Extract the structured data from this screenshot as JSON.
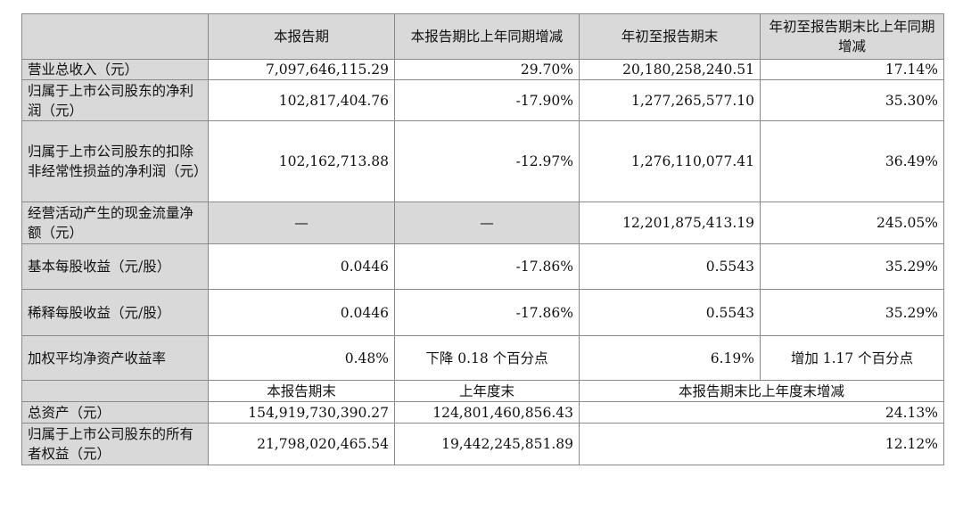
{
  "header": [
    "",
    "本报告期",
    "本报告期比上年同期增减",
    "年初至报告期末",
    "年初至报告期末比上年同期增减"
  ],
  "rows": [
    {
      "label": "营业总收入（元）",
      "v": [
        "7,097,646,115.29",
        "29.70%",
        "20,180,258,240.51",
        "17.14%"
      ]
    },
    {
      "label": "归属于上市公司股东的净利润（元）",
      "v": [
        "102,817,404.76",
        "-17.90%",
        "1,277,265,577.10",
        "35.30%"
      ]
    },
    {
      "label": "归属于上市公司股东的扣除非经常性损益的净利润（元）",
      "v": [
        "102,162,713.88",
        "-12.97%",
        "1,276,110,077.41",
        "36.49%"
      ]
    },
    {
      "label": "经营活动产生的现金流量净额（元）",
      "v": [
        "—",
        "—",
        "12,201,875,413.19",
        "245.05%"
      ]
    },
    {
      "label": "基本每股收益（元/股）",
      "v": [
        "0.0446",
        "-17.86%",
        "0.5543",
        "35.29%"
      ]
    },
    {
      "label": "稀释每股收益（元/股）",
      "v": [
        "0.0446",
        "-17.86%",
        "0.5543",
        "35.29%"
      ]
    },
    {
      "label": "加权平均净资产收益率",
      "v": [
        "0.48%",
        "下降 0.18 个百分点",
        "6.19%",
        "增加 1.17 个百分点"
      ]
    }
  ],
  "header2": [
    "",
    "本报告期末",
    "上年度末",
    "本报告期末比上年度末增减"
  ],
  "rows2": [
    {
      "label": "总资产（元）",
      "v": [
        "154,919,730,390.27",
        "124,801,460,856.43",
        "24.13%"
      ]
    },
    {
      "label": "归属于上市公司股东的所有者权益（元）",
      "v": [
        "21,798,020,465.54",
        "19,442,245,851.89",
        "12.12%"
      ]
    }
  ]
}
